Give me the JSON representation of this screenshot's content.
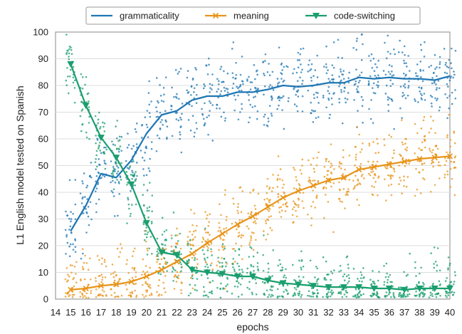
{
  "chart_data": {
    "type": "line",
    "xlabel": "epochs",
    "ylabel": "L1 English model tested on Spanish",
    "x_ticks": [
      14,
      15,
      16,
      17,
      18,
      19,
      20,
      21,
      22,
      23,
      24,
      25,
      26,
      27,
      28,
      29,
      30,
      31,
      32,
      33,
      34,
      35,
      36,
      37,
      38,
      39,
      40
    ],
    "y_ticks": [
      0,
      10,
      20,
      30,
      40,
      50,
      60,
      70,
      80,
      90,
      100
    ],
    "xlim": [
      14,
      40
    ],
    "ylim": [
      0,
      100
    ],
    "grid": true,
    "legend_position": "top-center",
    "x": [
      15,
      16,
      17,
      18,
      19,
      20,
      21,
      22,
      23,
      24,
      25,
      26,
      27,
      28,
      29,
      30,
      31,
      32,
      33,
      34,
      35,
      36,
      37,
      38,
      39,
      40
    ],
    "series": [
      {
        "name": "grammaticality",
        "color": "#1f77b4",
        "marker": "none",
        "values": [
          25.5,
          35,
          47,
          45.5,
          52,
          62,
          69,
          70.5,
          74.5,
          76,
          76,
          77.5,
          77.5,
          78.5,
          80,
          79.5,
          80,
          81,
          81,
          83,
          82.5,
          83,
          82.5,
          82.5,
          82,
          83.5
        ]
      },
      {
        "name": "meaning",
        "color": "#e8941a",
        "marker": "x",
        "values": [
          3.5,
          4,
          5,
          5.5,
          6.5,
          8.5,
          11,
          14,
          17,
          21,
          24.5,
          28,
          31,
          34.5,
          38,
          40.5,
          42.5,
          44.5,
          45.5,
          48.5,
          49.5,
          50.5,
          51.5,
          52.5,
          53,
          53.5
        ]
      },
      {
        "name": "code-switching",
        "color": "#1a9e6e",
        "marker": "triangle-down",
        "values": [
          88,
          72.5,
          60.5,
          53,
          43,
          28.5,
          17.5,
          16.5,
          11,
          10,
          9.5,
          8.5,
          8.5,
          7,
          6,
          5.5,
          5,
          4.5,
          4.5,
          4.5,
          4,
          4,
          3.5,
          4,
          4,
          4
        ]
      }
    ]
  }
}
